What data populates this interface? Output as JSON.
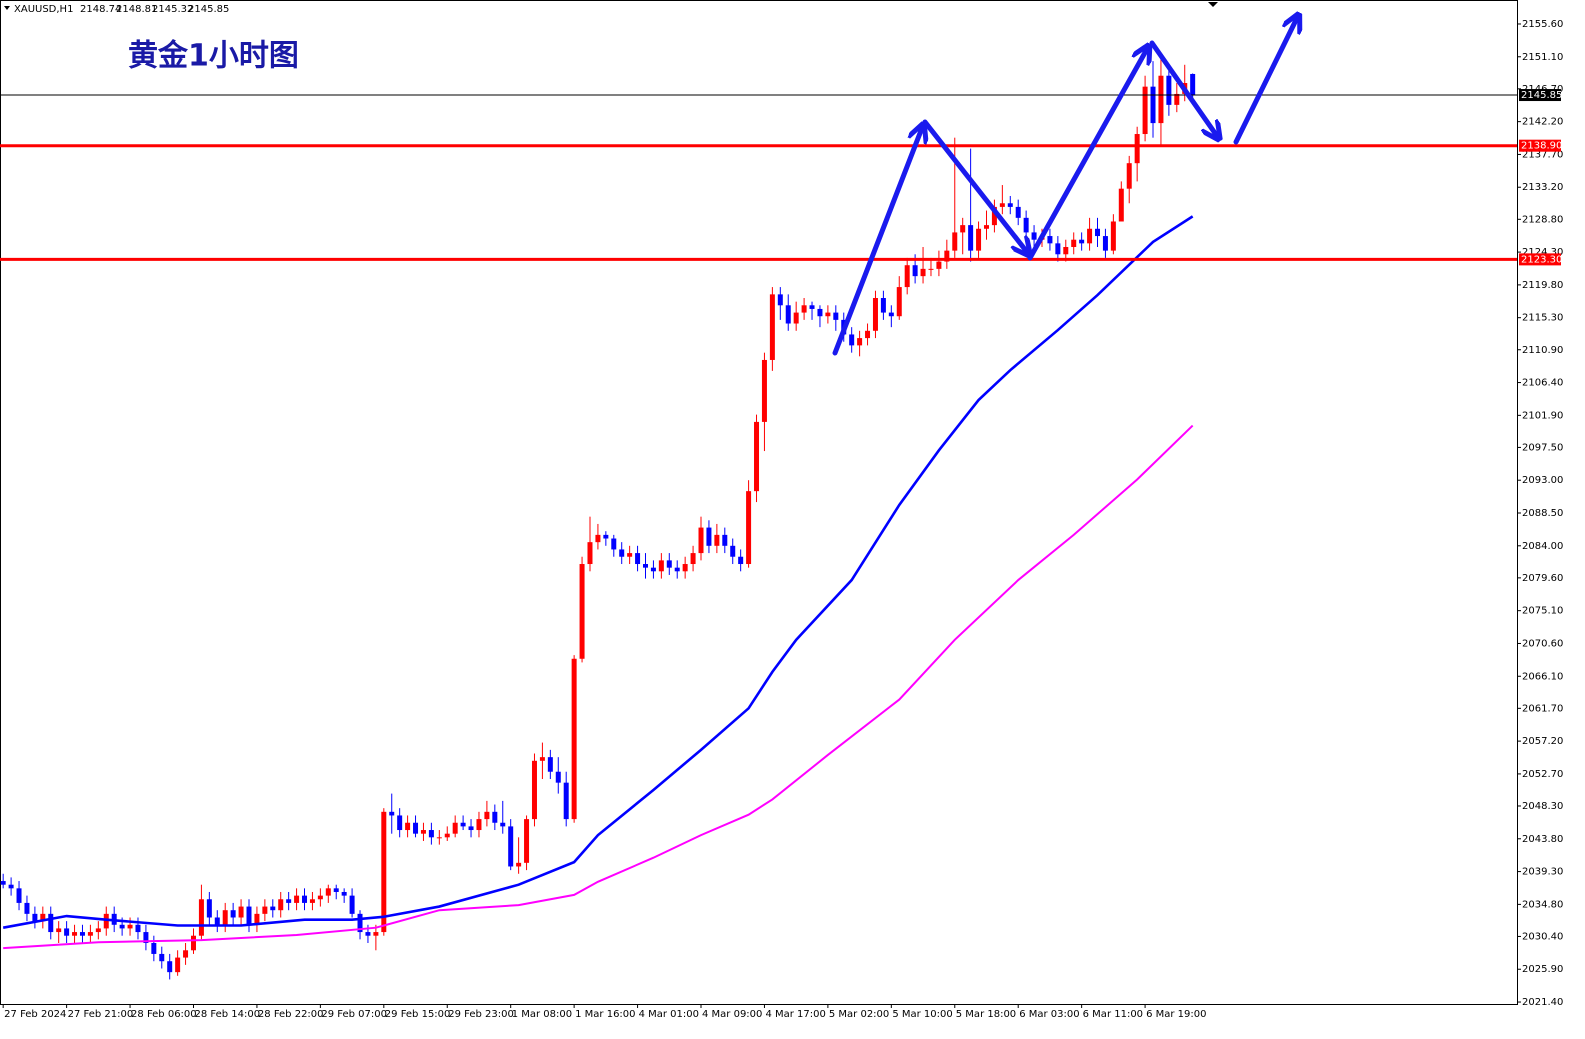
{
  "chart_data": {
    "type": "candlestick",
    "title": "黄金1小时图",
    "symbol": "XAUUSD,H1",
    "up_color": "#ff0000",
    "down_color": "#0000ff",
    "candles": {
      "open": [
        2038.0,
        2037.5,
        2037.0,
        2035.0,
        2033.5,
        2032.5,
        2033.5,
        2031.0,
        2031.5,
        2030.5,
        2031.0,
        2030.5,
        2031.0,
        2031.5,
        2033.5,
        2032.0,
        2031.5,
        2032.0,
        2031.0,
        2029.5,
        2028.0,
        2027.0,
        2025.5,
        2027.5,
        2028.5,
        2030.5,
        2035.5,
        2033.0,
        2032.0,
        2034.0,
        2033.0,
        2034.5,
        2032.0,
        2033.5,
        2034.5,
        2034.0,
        2035.5,
        2035.0,
        2036.0,
        2035.0,
        2035.5,
        2036.0,
        2037.0,
        2036.5,
        2036.0,
        2033.5,
        2031.0,
        2030.5,
        2031.0,
        2047.5,
        2047.0,
        2045.0,
        2046.0,
        2044.5,
        2045.0,
        2044.0,
        2044.0,
        2044.5,
        2046.0,
        2045.5,
        2045.0,
        2046.5,
        2047.5,
        2046.0,
        2045.5,
        2040.0,
        2040.5,
        2046.5,
        2054.5,
        2055.0,
        2053.0,
        2051.5,
        2046.5,
        2068.5,
        2081.5,
        2084.5,
        2085.5,
        2085.0,
        2083.5,
        2082.5,
        2083.0,
        2081.5,
        2081.0,
        2080.5,
        2082.0,
        2081.0,
        2080.5,
        2081.5,
        2083.0,
        2086.5,
        2084.0,
        2085.5,
        2084.0,
        2082.5,
        2081.5,
        2091.5,
        2101.0,
        2109.5,
        2118.5,
        2117.0,
        2114.5,
        2116.0,
        2117.0,
        2116.5,
        2115.5,
        2116.0,
        2115.0,
        2113.0,
        2111.5,
        2112.5,
        2113.5,
        2118.0,
        2116.0,
        2115.5,
        2119.5,
        2122.5,
        2121.0,
        2122.0,
        2122.0,
        2123.0,
        2124.5,
        2127.0,
        2128.0,
        2124.5,
        2127.5,
        2128.0,
        2130.5,
        2131.0,
        2130.5,
        2129.0,
        2127.0,
        2126.0,
        2126.5,
        2125.5,
        2124.0,
        2125.0,
        2126.0,
        2125.5,
        2127.5,
        2126.5,
        2124.5,
        2128.5,
        2133.0,
        2136.5,
        2140.5,
        2147.0,
        2142.0,
        2148.5,
        2144.5,
        2146.0,
        2148.74
      ],
      "high": [
        2039,
        2038.5,
        2038,
        2036,
        2034.5,
        2034.5,
        2034.5,
        2032.5,
        2032.5,
        2032,
        2032,
        2032,
        2032.5,
        2034.5,
        2034.5,
        2033,
        2033,
        2033,
        2032,
        2030.5,
        2029,
        2028,
        2028.5,
        2029.5,
        2031.5,
        2037.5,
        2036.5,
        2034,
        2035,
        2035,
        2035.5,
        2035.5,
        2034.5,
        2035.5,
        2035.5,
        2036.5,
        2036.5,
        2037,
        2037,
        2036.5,
        2037,
        2037.5,
        2037.5,
        2037,
        2037,
        2034,
        2032,
        2032,
        2048,
        2050,
        2048,
        2047,
        2047,
        2046,
        2046,
        2045,
        2045.5,
        2047,
        2047,
        2046.5,
        2047.5,
        2049,
        2048.5,
        2049,
        2046.5,
        2044,
        2047,
        2055.5,
        2057,
        2056,
        2055,
        2053,
        2069,
        2082.5,
        2088,
        2087,
        2086,
        2085.5,
        2084.5,
        2084,
        2084,
        2083,
        2082,
        2083,
        2083,
        2082,
        2082.5,
        2084,
        2088,
        2087.5,
        2087,
        2086.5,
        2085,
        2083.5,
        2093,
        2102,
        2110.5,
        2119.5,
        2119.5,
        2118.5,
        2117.5,
        2118,
        2117.5,
        2117,
        2117,
        2117,
        2116,
        2114,
        2113.5,
        2114.5,
        2119,
        2119,
        2117,
        2121,
        2123.5,
        2124,
        2125,
        2123.5,
        2124.5,
        2126,
        2140,
        2129,
        2138.5,
        2128.5,
        2130,
        2131.5,
        2133.5,
        2132,
        2131.5,
        2130,
        2128,
        2127.5,
        2127.5,
        2126.5,
        2126,
        2127,
        2127,
        2129,
        2129,
        2127.5,
        2129.5,
        2134,
        2137.5,
        2141.5,
        2148.5,
        2150.5,
        2151,
        2149.5,
        2147.5,
        2150,
        2148.81
      ],
      "low": [
        2037,
        2036,
        2034,
        2032.5,
        2031.5,
        2031.5,
        2030,
        2029.5,
        2029.5,
        2029.5,
        2029.5,
        2029.5,
        2030,
        2030.5,
        2031,
        2030.5,
        2030.5,
        2030,
        2028.5,
        2027,
        2026,
        2024.5,
        2025,
        2026.5,
        2028,
        2030,
        2032,
        2031,
        2031,
        2032,
        2032,
        2031,
        2031,
        2032.5,
        2033,
        2033,
        2034,
        2034,
        2034,
        2034,
        2034.5,
        2035,
        2035.5,
        2035,
        2033,
        2030,
        2029.5,
        2028.5,
        2030.5,
        2044.5,
        2044,
        2044,
        2044,
        2043.5,
        2043,
        2043,
        2043.5,
        2044,
        2045,
        2044,
        2044,
        2045.5,
        2045,
        2044.5,
        2039.5,
        2039,
        2039.5,
        2045.5,
        2052,
        2052,
        2050,
        2045.5,
        2046,
        2068,
        2080.5,
        2083.5,
        2084,
        2082.5,
        2081.5,
        2081.5,
        2080.5,
        2079.5,
        2079.5,
        2079.5,
        2080,
        2079.5,
        2079.5,
        2080.5,
        2082,
        2083,
        2083,
        2083,
        2081.5,
        2080.5,
        2081,
        2090,
        2097,
        2108,
        2115,
        2113.5,
        2113.5,
        2115,
        2115,
        2114,
        2114.5,
        2113.5,
        2112,
        2110.5,
        2110,
        2111.5,
        2112.5,
        2115,
        2114,
        2115,
        2118.5,
        2120,
        2120,
        2121,
        2121,
        2122,
        2123.5,
        2124,
        2123,
        2123.5,
        2126,
        2127,
        2129.5,
        2129.5,
        2128,
        2126,
        2125,
        2125,
        2124.5,
        2123,
        2123,
        2124,
        2124.5,
        2124.5,
        2125,
        2123.5,
        2124,
        2132,
        2131,
        2134,
        2139.5,
        2140,
        2139,
        2143,
        2143.5,
        2145,
        2145.32
      ],
      "close": [
        2037.5,
        2037.0,
        2035.0,
        2033.5,
        2032.5,
        2033.5,
        2031.0,
        2031.5,
        2030.5,
        2031.0,
        2030.5,
        2031.0,
        2031.5,
        2033.5,
        2032.0,
        2031.5,
        2032.0,
        2031.0,
        2029.5,
        2028.0,
        2027.0,
        2025.5,
        2027.5,
        2028.5,
        2030.5,
        2035.5,
        2033.0,
        2032.0,
        2034.0,
        2033.0,
        2034.5,
        2032.0,
        2033.5,
        2034.5,
        2034.0,
        2035.5,
        2035.0,
        2036.0,
        2035.0,
        2035.5,
        2036.0,
        2037.0,
        2036.5,
        2036.0,
        2033.5,
        2031.0,
        2030.5,
        2031.0,
        2047.5,
        2047.0,
        2045.0,
        2046.0,
        2044.5,
        2045.0,
        2044.0,
        2044.0,
        2044.5,
        2046.0,
        2045.5,
        2045.0,
        2046.5,
        2047.5,
        2046.0,
        2045.5,
        2040.0,
        2040.5,
        2046.5,
        2054.5,
        2055.0,
        2053.0,
        2051.5,
        2046.5,
        2068.5,
        2081.5,
        2084.5,
        2085.5,
        2085.0,
        2083.5,
        2082.5,
        2083.0,
        2081.5,
        2081.0,
        2080.5,
        2082.0,
        2081.0,
        2080.5,
        2081.5,
        2083.0,
        2086.5,
        2084.0,
        2085.5,
        2084.0,
        2082.5,
        2081.5,
        2091.5,
        2101.0,
        2109.5,
        2118.5,
        2117.0,
        2114.5,
        2116.0,
        2117.0,
        2116.5,
        2115.5,
        2116.0,
        2115.0,
        2113.0,
        2111.5,
        2112.5,
        2113.5,
        2118.0,
        2116.0,
        2115.5,
        2119.5,
        2122.5,
        2121.0,
        2122.0,
        2122.0,
        2123.0,
        2124.5,
        2127.0,
        2128.0,
        2124.5,
        2127.5,
        2128.0,
        2130.5,
        2131.0,
        2130.5,
        2129.0,
        2127.0,
        2126.0,
        2126.5,
        2125.5,
        2124.0,
        2125.0,
        2126.0,
        2125.5,
        2127.5,
        2126.5,
        2124.5,
        2128.5,
        2133.0,
        2136.5,
        2140.5,
        2147.0,
        2142.0,
        2148.5,
        2144.5,
        2146.0,
        2147.5,
        2145.85
      ]
    },
    "series": [
      {
        "color": "#0000ff",
        "x": [
          0,
          8,
          13,
          22,
          30,
          38,
          44,
          48,
          55,
          65,
          72,
          75,
          82,
          88,
          94,
          97,
          100,
          107,
          113,
          118,
          123,
          127,
          133,
          138,
          145,
          150
        ],
        "values": [
          2031.6,
          2033.2,
          2032.7,
          2031.9,
          2031.9,
          2032.7,
          2032.7,
          2033.1,
          2034.5,
          2037.5,
          2040.6,
          2044.3,
          2050.5,
          2056.0,
          2061.7,
          2066.7,
          2071.1,
          2079.3,
          2089.6,
          2097.1,
          2104.0,
          2108.1,
          2113.6,
          2118.4,
          2125.7,
          2129.2
        ]
      },
      {
        "color": "#ff00ff",
        "x": [
          0,
          12,
          25,
          37,
          47,
          55,
          65,
          72,
          75,
          82,
          88,
          94,
          97,
          104,
          113,
          120,
          128,
          135,
          143,
          150
        ],
        "values": [
          2028.8,
          2029.6,
          2029.9,
          2030.6,
          2031.6,
          2034.0,
          2034.7,
          2036.1,
          2037.9,
          2041.2,
          2044.3,
          2047.1,
          2049.2,
          2055.3,
          2062.9,
          2071.1,
          2079.3,
          2085.5,
          2093.1,
          2100.5
        ]
      }
    ],
    "hlines": [
      {
        "value": 2138.9,
        "label": "2138.90",
        "color": "#ff0000"
      },
      {
        "value": 2123.3,
        "label": "2123.30",
        "color": "#ff0000"
      }
    ],
    "xlim": [
      -0.4,
      190.9
    ],
    "xticks": [
      {
        "value": 0,
        "label": "27 Feb 2024"
      },
      {
        "value": 8,
        "label": "27 Feb 21:00"
      },
      {
        "value": 16,
        "label": "28 Feb 06:00"
      },
      {
        "value": 24,
        "label": "28 Feb 14:00"
      },
      {
        "value": 32,
        "label": "28 Feb 22:00"
      },
      {
        "value": 40,
        "label": "29 Feb 07:00"
      },
      {
        "value": 48,
        "label": "29 Feb 15:00"
      },
      {
        "value": 56,
        "label": "29 Feb 23:00"
      },
      {
        "value": 64,
        "label": "1 Mar 08:00"
      },
      {
        "value": 72,
        "label": "1 Mar 16:00"
      },
      {
        "value": 80,
        "label": "4 Mar 01:00"
      },
      {
        "value": 88,
        "label": "4 Mar 09:00"
      },
      {
        "value": 96,
        "label": "4 Mar 17:00"
      },
      {
        "value": 104,
        "label": "5 Mar 02:00"
      },
      {
        "value": 112,
        "label": "5 Mar 10:00"
      },
      {
        "value": 120,
        "label": "5 Mar 18:00"
      },
      {
        "value": 128,
        "label": "6 Mar 03:00"
      },
      {
        "value": 136,
        "label": "6 Mar 11:00"
      },
      {
        "value": 144,
        "label": "6 Mar 19:00"
      }
    ],
    "ylim": [
      2021.13,
      2158.89
    ],
    "yticks": [
      {
        "value": 2155.6,
        "label": "2155.60"
      },
      {
        "value": 2151.1,
        "label": "2151.10"
      },
      {
        "value": 2146.7,
        "label": "2146.70"
      },
      {
        "value": 2142.2,
        "label": "2142.20"
      },
      {
        "value": 2137.7,
        "label": "2137.70"
      },
      {
        "value": 2133.2,
        "label": "2133.20"
      },
      {
        "value": 2128.8,
        "label": "2128.80"
      },
      {
        "value": 2124.3,
        "label": "2124.30"
      },
      {
        "value": 2119.8,
        "label": "2119.80"
      },
      {
        "value": 2115.3,
        "label": "2115.30"
      },
      {
        "value": 2110.9,
        "label": "2110.90"
      },
      {
        "value": 2106.4,
        "label": "2106.40"
      },
      {
        "value": 2101.9,
        "label": "2101.90"
      },
      {
        "value": 2097.5,
        "label": "2097.50"
      },
      {
        "value": 2093,
        "label": "2093.00"
      },
      {
        "value": 2088.5,
        "label": "2088.50"
      },
      {
        "value": 2084,
        "label": "2084.00"
      },
      {
        "value": 2079.6,
        "label": "2079.60"
      },
      {
        "value": 2075.1,
        "label": "2075.10"
      },
      {
        "value": 2070.6,
        "label": "2070.60"
      },
      {
        "value": 2066.1,
        "label": "2066.10"
      },
      {
        "value": 2061.7,
        "label": "2061.70"
      },
      {
        "value": 2057.2,
        "label": "2057.20"
      },
      {
        "value": 2052.7,
        "label": "2052.70"
      },
      {
        "value": 2048.3,
        "label": "2048.30"
      },
      {
        "value": 2043.8,
        "label": "2043.80"
      },
      {
        "value": 2039.3,
        "label": "2039.30"
      },
      {
        "value": 2034.8,
        "label": "2034.80"
      },
      {
        "value": 2030.4,
        "label": "2030.40"
      },
      {
        "value": 2025.9,
        "label": "2025.90"
      },
      {
        "value": 2021.4,
        "label": "2021.40"
      }
    ]
  }
}
